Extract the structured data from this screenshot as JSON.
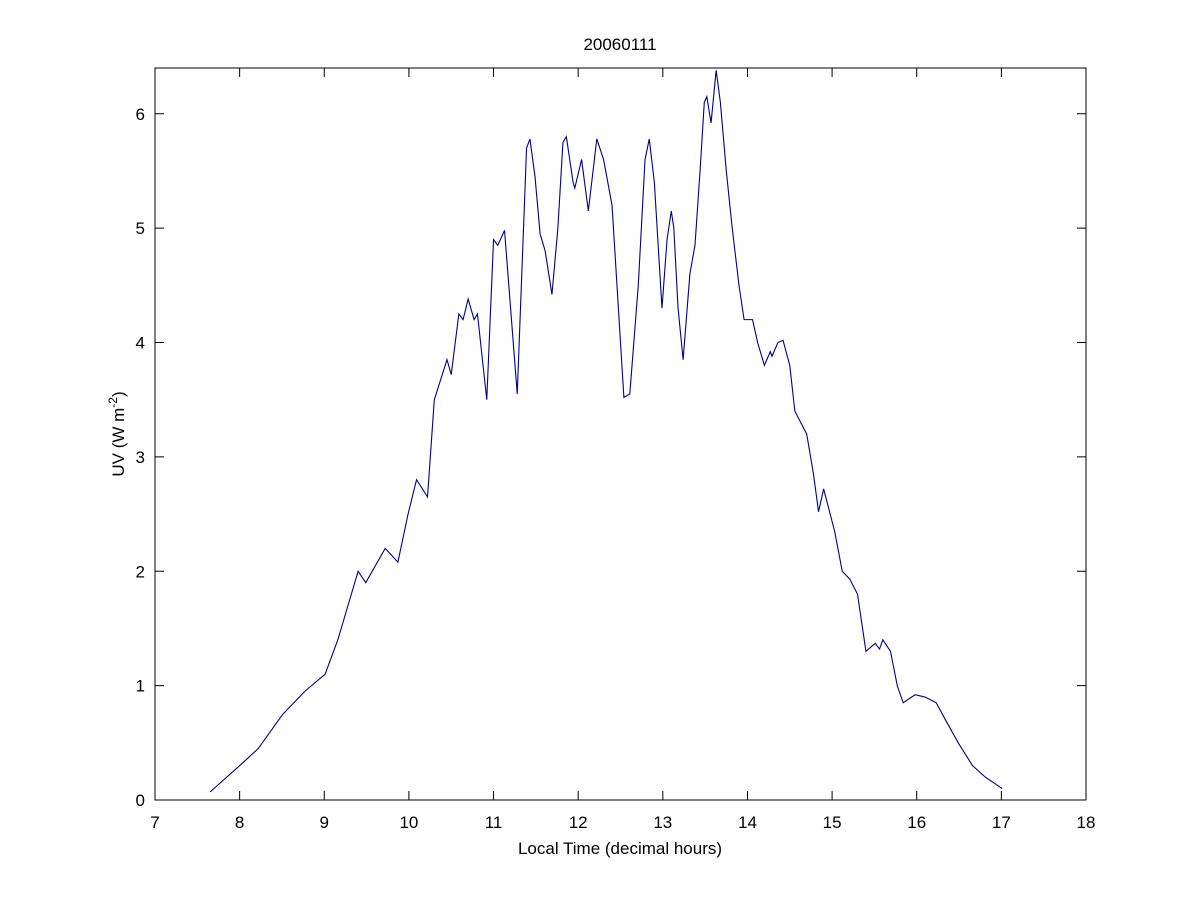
{
  "chart_data": {
    "type": "line",
    "title": "20060111",
    "xlabel": "Local Time (decimal hours)",
    "ylabel_parts": [
      "UV (W m",
      "-2",
      ")"
    ],
    "xlim": [
      7,
      18
    ],
    "xticks": [
      7,
      8,
      9,
      10,
      11,
      12,
      13,
      14,
      15,
      16,
      17,
      18
    ],
    "ylim": [
      0,
      6.4
    ],
    "yticks": [
      0,
      1,
      2,
      3,
      4,
      5,
      6
    ],
    "grid": false,
    "series": [
      {
        "color": "#00008b",
        "x": [
          7.65,
          8.0,
          8.22,
          8.51,
          8.77,
          9.01,
          9.16,
          9.34,
          9.4,
          9.49,
          9.72,
          9.87,
          9.99,
          10.09,
          10.22,
          10.3,
          10.45,
          10.5,
          10.59,
          10.64,
          10.7,
          10.77,
          10.81,
          10.92,
          11.0,
          11.05,
          11.13,
          11.28,
          11.39,
          11.43,
          11.49,
          11.55,
          11.61,
          11.69,
          11.76,
          11.82,
          11.86,
          11.94,
          11.96,
          12.04,
          12.12,
          12.22,
          12.3,
          12.4,
          12.45,
          12.54,
          12.61,
          12.71,
          12.79,
          12.84,
          12.9,
          12.99,
          13.05,
          13.1,
          13.13,
          13.18,
          13.24,
          13.32,
          13.38,
          13.44,
          13.49,
          13.52,
          13.57,
          13.63,
          13.68,
          13.75,
          13.82,
          13.9,
          13.96,
          14.06,
          14.12,
          14.2,
          14.27,
          14.29,
          14.36,
          14.42,
          14.5,
          14.56,
          14.7,
          14.78,
          14.84,
          14.9,
          15.03,
          15.12,
          15.21,
          15.3,
          15.4,
          15.51,
          15.56,
          15.6,
          15.69,
          15.77,
          15.84,
          15.98,
          16.1,
          16.23,
          16.34,
          16.49,
          16.66,
          16.81,
          17.01
        ],
        "values": [
          0.07,
          0.3,
          0.45,
          0.75,
          0.95,
          1.1,
          1.4,
          1.85,
          2.0,
          1.9,
          2.2,
          2.08,
          2.5,
          2.8,
          2.65,
          3.5,
          3.85,
          3.72,
          4.25,
          4.2,
          4.38,
          4.2,
          4.25,
          3.5,
          4.9,
          4.85,
          4.98,
          3.55,
          5.7,
          5.78,
          5.45,
          4.95,
          4.8,
          4.42,
          5.0,
          5.75,
          5.8,
          5.4,
          5.35,
          5.6,
          5.15,
          5.78,
          5.6,
          5.2,
          4.6,
          3.52,
          3.55,
          4.5,
          5.6,
          5.78,
          5.4,
          4.3,
          4.9,
          5.15,
          5.0,
          4.3,
          3.85,
          4.6,
          4.85,
          5.5,
          6.1,
          6.15,
          5.92,
          6.38,
          6.1,
          5.5,
          5.0,
          4.5,
          4.2,
          4.2,
          4.0,
          3.8,
          3.92,
          3.88,
          4.0,
          4.02,
          3.8,
          3.4,
          3.2,
          2.85,
          2.52,
          2.72,
          2.35,
          2.0,
          1.93,
          1.8,
          1.3,
          1.37,
          1.32,
          1.4,
          1.3,
          1.0,
          0.85,
          0.92,
          0.9,
          0.85,
          0.7,
          0.5,
          0.3,
          0.2,
          0.1
        ]
      }
    ]
  }
}
